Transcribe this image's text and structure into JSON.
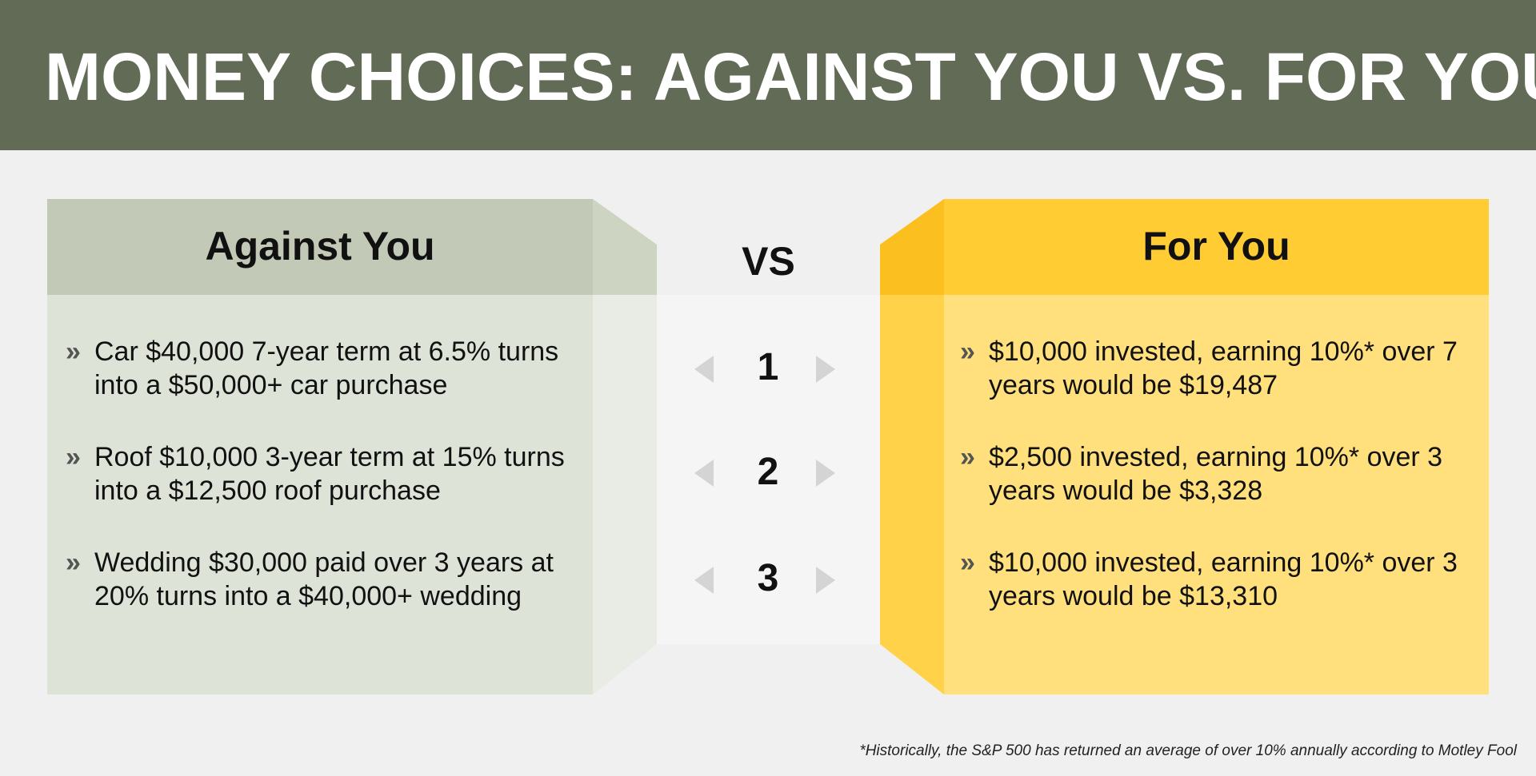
{
  "header": {
    "title": "MONEY CHOICES: AGAINST YOU VS. FOR YOU"
  },
  "colors": {
    "header_bg": "#616b55",
    "against_header": "#c2c9b6",
    "against_body": "#dee3d8",
    "for_header": "#ffcc33",
    "for_body": "#ffe07d"
  },
  "against": {
    "title": "Against You",
    "items": [
      {
        "line1": "Car $40,000 7-year term at 6.5% turns",
        "line2": "into a $50,000+ car purchase"
      },
      {
        "line1": "Roof $10,000 3-year term at 15% turns",
        "line2": "into a $12,500 roof purchase"
      },
      {
        "line1": "Wedding $30,000 paid over 3 years at",
        "line2": "20% turns into a $40,000+ wedding"
      }
    ]
  },
  "middle": {
    "vs_label": "VS",
    "rows": [
      "1",
      "2",
      "3"
    ]
  },
  "for": {
    "title": "For You",
    "items": [
      {
        "line1": "$10,000 invested, earning 10%* over 7",
        "line2": "years would be $19,487"
      },
      {
        "line1": "$2,500 invested, earning 10%* over 3",
        "line2": "years would be $3,328"
      },
      {
        "line1": "$10,000 invested, earning 10%* over 3",
        "line2": "years would be $13,310"
      }
    ]
  },
  "bullet_glyph": "»",
  "footnote": "*Historically, the S&P 500 has returned an average of over 10% annually according to Motley Fool"
}
